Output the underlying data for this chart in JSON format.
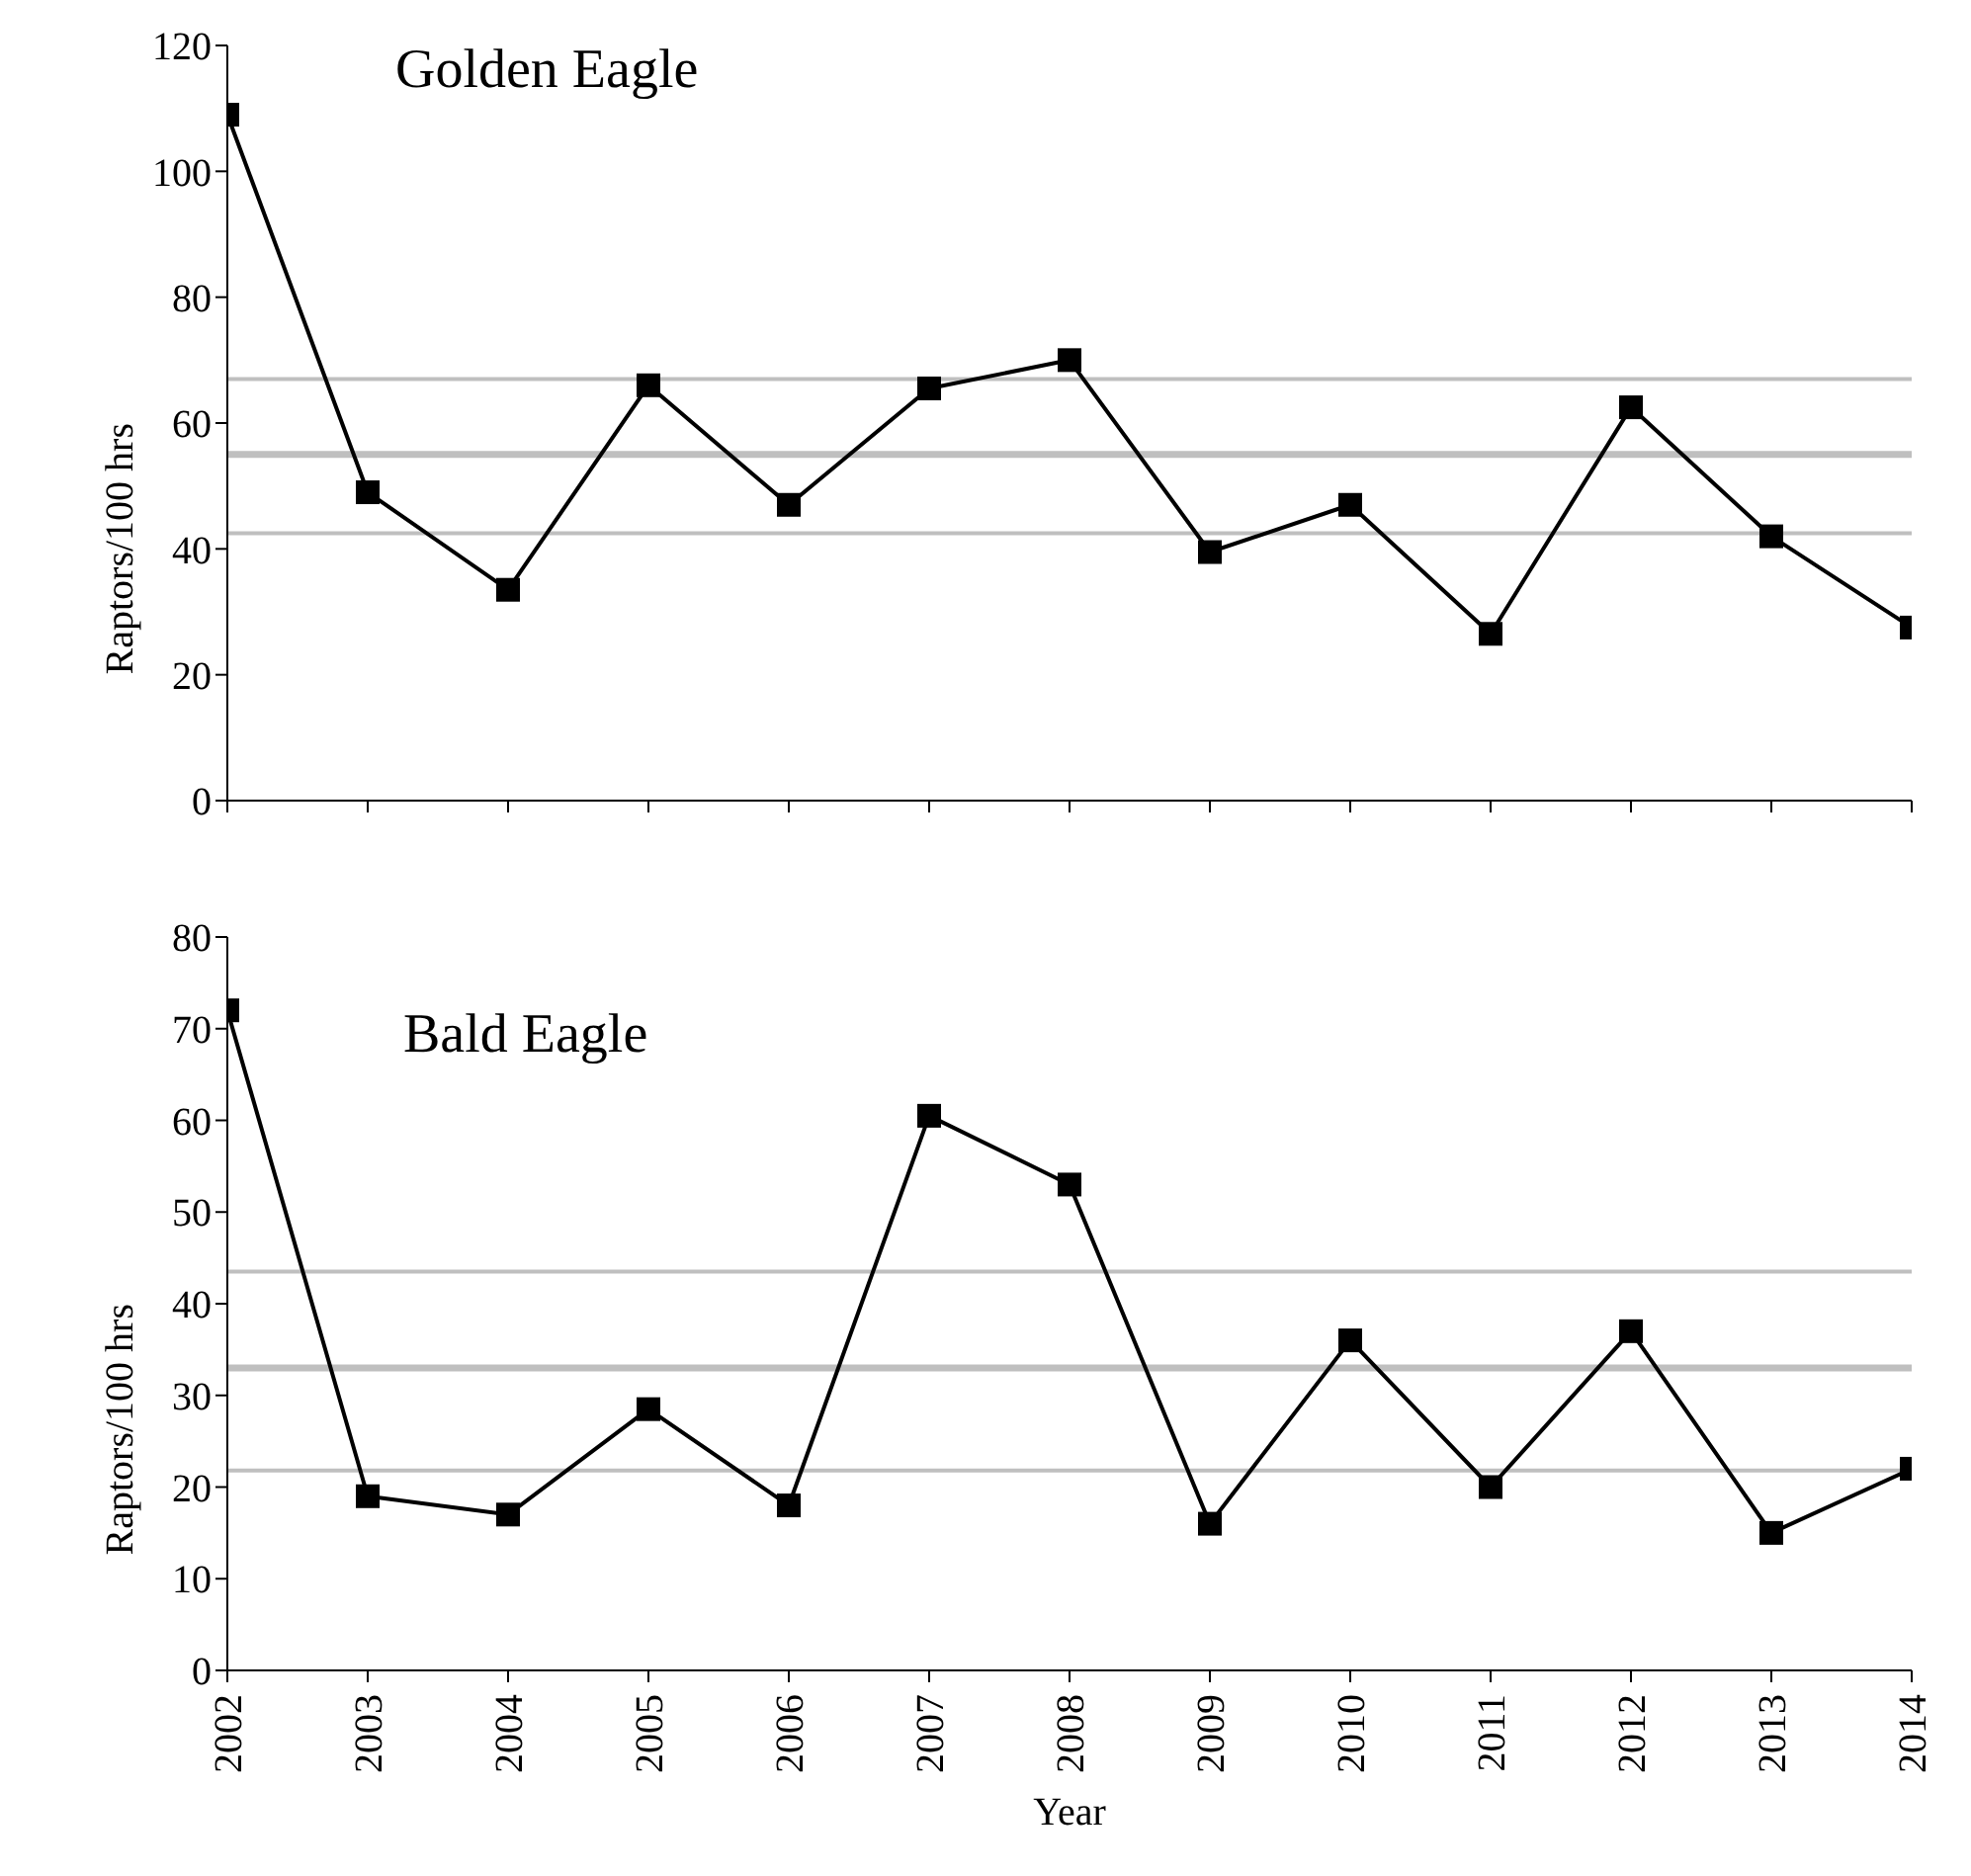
{
  "chart_data": [
    {
      "type": "line",
      "title": "Golden Eagle",
      "ylabel": "Raptors/100 hrs",
      "categories": [
        "2002",
        "2003",
        "2004",
        "2005",
        "2006",
        "2007",
        "2008",
        "2009",
        "2010",
        "2011",
        "2012",
        "2013",
        "2014"
      ],
      "series": [
        {
          "color": "#000000",
          "values": [
            109,
            49,
            33.5,
            66,
            47,
            65.5,
            70,
            39.5,
            47,
            26.5,
            62.5,
            42,
            27.5
          ]
        }
      ],
      "ylim": [
        0,
        120
      ],
      "yticks": [
        0,
        20,
        40,
        60,
        80,
        100,
        120
      ],
      "tick_labels": "y",
      "marker": "square",
      "grid": false,
      "legend": false,
      "ref_lines": [
        {
          "axis": "y",
          "value": 67,
          "color": "#bfbfbf"
        },
        {
          "axis": "y",
          "value": 55,
          "color": "#bfbfbf"
        },
        {
          "axis": "y",
          "value": 42.5,
          "color": "#bfbfbf"
        }
      ]
    },
    {
      "type": "line",
      "title": "Bald Eagle",
      "ylabel": "Raptors/100 hrs",
      "xlabel": "Year",
      "categories": [
        "2002",
        "2003",
        "2004",
        "2005",
        "2006",
        "2007",
        "2008",
        "2009",
        "2010",
        "2011",
        "2012",
        "2013",
        "2014"
      ],
      "series": [
        {
          "color": "#000000",
          "values": [
            72,
            19,
            17,
            28.5,
            18,
            60.5,
            53,
            16,
            36,
            20,
            37,
            15,
            22
          ]
        }
      ],
      "ylim": [
        0,
        80
      ],
      "yticks": [
        0,
        10,
        20,
        30,
        40,
        50,
        60,
        70,
        80
      ],
      "marker": "square",
      "grid": false,
      "legend": false,
      "ref_lines": [
        {
          "axis": "y",
          "value": 43.5,
          "color": "#bfbfbf"
        },
        {
          "axis": "y",
          "value": 33,
          "color": "#bfbfbf"
        },
        {
          "axis": "y",
          "value": 21.8,
          "color": "#bfbfbf"
        }
      ]
    }
  ]
}
